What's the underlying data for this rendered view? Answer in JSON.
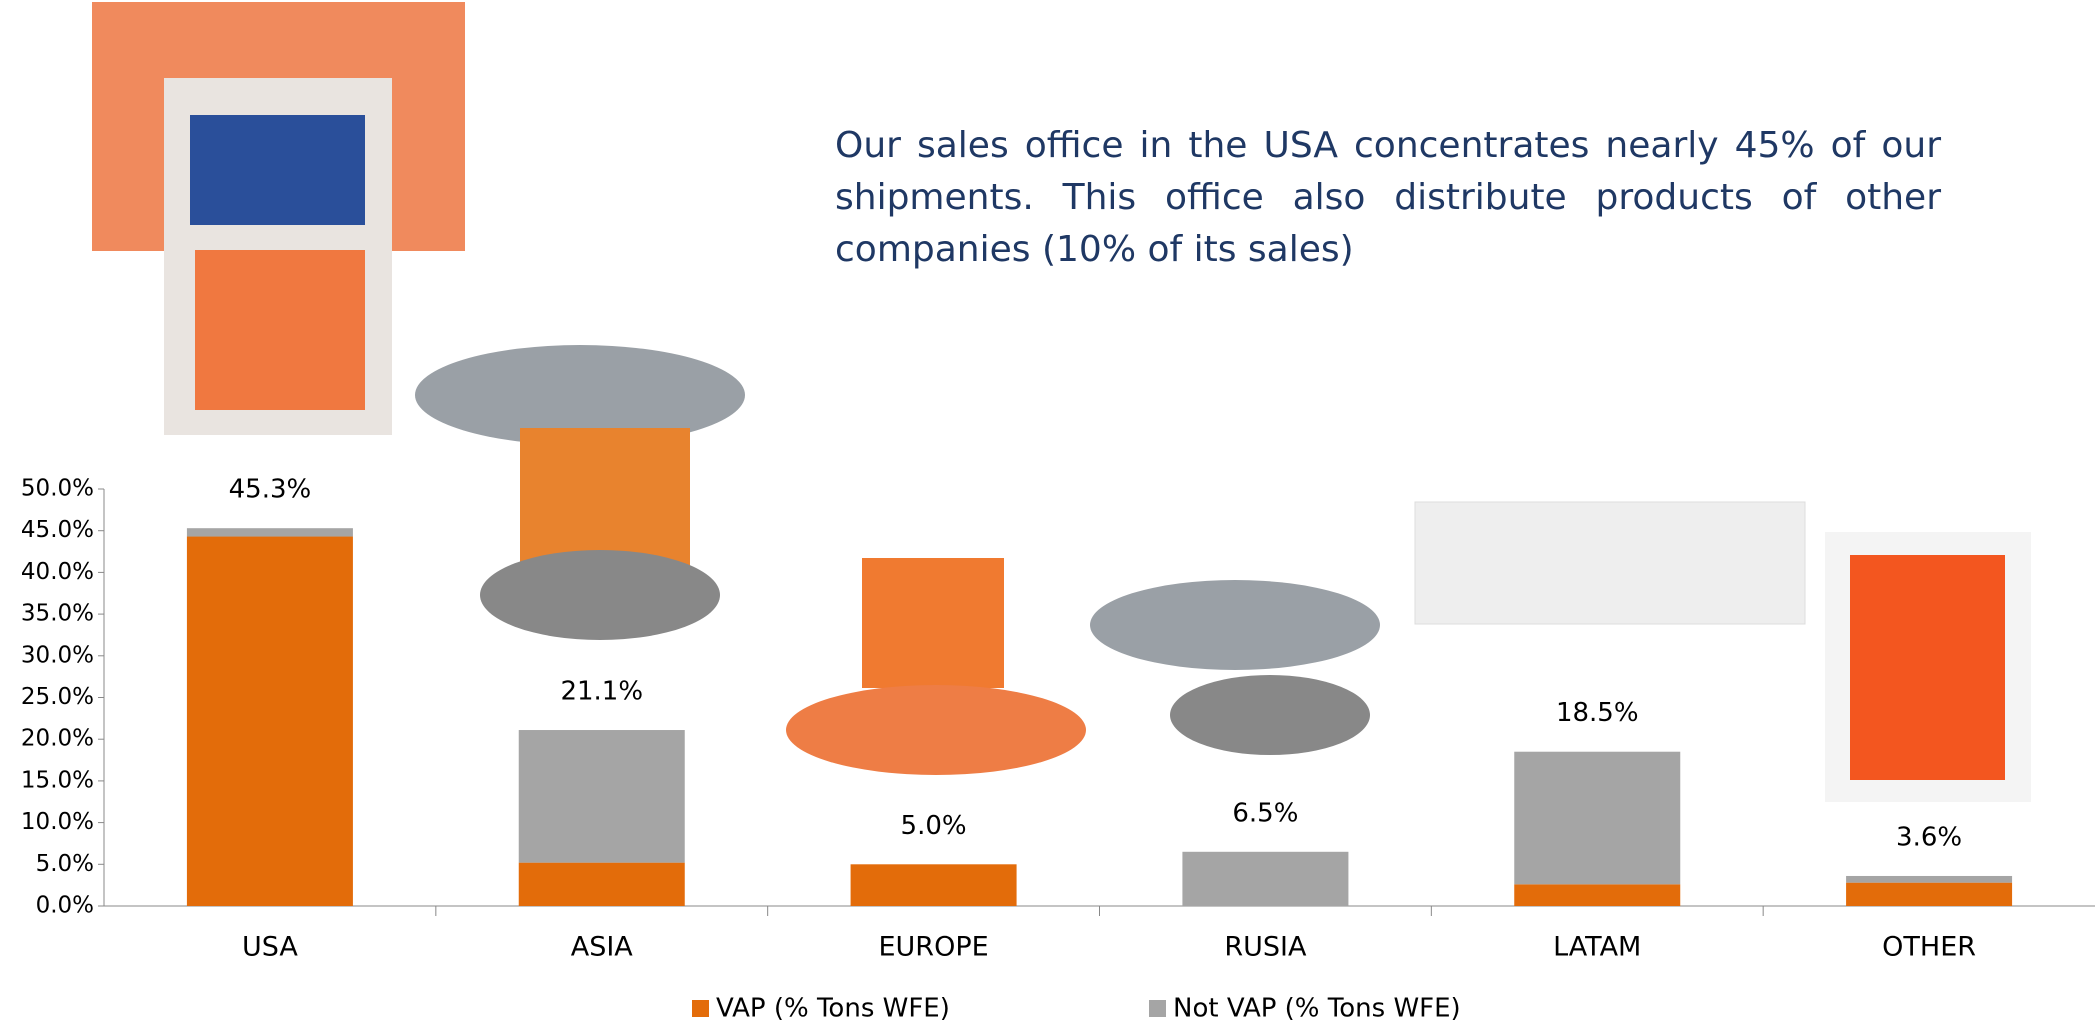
{
  "paragraph": "Our sales office in the USA concentrates nearly 45% of our shipments. This office also distribute products of other companies (10% of its sales)",
  "chart_data": {
    "type": "bar",
    "stacked": true,
    "categories": [
      "USA",
      "ASIA",
      "EUROPE",
      "RUSIA",
      "LATAM",
      "OTHER"
    ],
    "series": [
      {
        "name": "VAP (% Tons WFE)",
        "color": "#e36c0a",
        "values": [
          44.3,
          5.2,
          5.0,
          0,
          2.6,
          2.8
        ]
      },
      {
        "name": "Not VAP (% Tons WFE)",
        "color": "#a5a5a5",
        "values": [
          1.0,
          15.9,
          0,
          6.5,
          15.9,
          0.8
        ]
      }
    ],
    "totals": [
      45.3,
      21.1,
      5.0,
      6.5,
      18.5,
      3.6
    ],
    "total_labels": [
      "45.3%",
      "21.1%",
      "5.0%",
      "6.5%",
      "18.5%",
      "3.6%"
    ],
    "ylim": [
      0,
      50
    ],
    "yticks": [
      {
        "value": 0,
        "label": "0.0%"
      },
      {
        "value": 5,
        "label": "5.0%"
      },
      {
        "value": 10,
        "label": "10.0%"
      },
      {
        "value": 15,
        "label": "15.0%"
      },
      {
        "value": 20,
        "label": "20.0%"
      },
      {
        "value": 25,
        "label": "25.0%"
      },
      {
        "value": 30,
        "label": "30.0%"
      },
      {
        "value": 35,
        "label": "35.0%"
      },
      {
        "value": 40,
        "label": "40.0%"
      },
      {
        "value": 45,
        "label": "45.0%"
      },
      {
        "value": 50,
        "label": "50.0%"
      }
    ],
    "legend": "bottom",
    "grid": false
  }
}
